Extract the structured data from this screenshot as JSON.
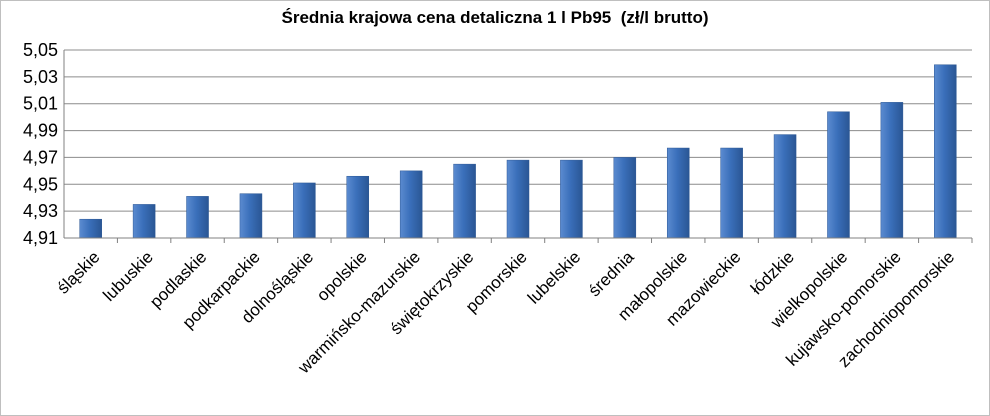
{
  "chart_data": {
    "type": "bar",
    "title": "Średnia krajowa cena detaliczna 1 l Pb95  (zł/l brutto)",
    "xlabel": "",
    "ylabel": "",
    "categories": [
      "śląskie",
      "lubuskie",
      "podlaskie",
      "podkarpackie",
      "dolnośląskie",
      "opolskie",
      "warmińsko-mazurskie",
      "świętokrzyskie",
      "pomorskie",
      "lubelskie",
      "średnia",
      "małopolskie",
      "mazowieckie",
      "łódzkie",
      "wielkopolskie",
      "kujawsko-pomorskie",
      "zachodniopomorskie"
    ],
    "values": [
      4.924,
      4.935,
      4.941,
      4.943,
      4.951,
      4.956,
      4.96,
      4.965,
      4.968,
      4.968,
      4.97,
      4.977,
      4.977,
      4.987,
      5.004,
      5.011,
      5.039
    ],
    "ylim": [
      4.91,
      5.05
    ],
    "yticks": [
      "4,91",
      "4,93",
      "4,95",
      "4,97",
      "4,99",
      "5,01",
      "5,03",
      "5,05"
    ],
    "grid": true,
    "legend": "none",
    "colors": {
      "bar_top": "#5b8bd0",
      "bar_mid": "#3a6fba",
      "bar_bottom": "#2a5694",
      "grid": "#8c8c8c"
    }
  }
}
